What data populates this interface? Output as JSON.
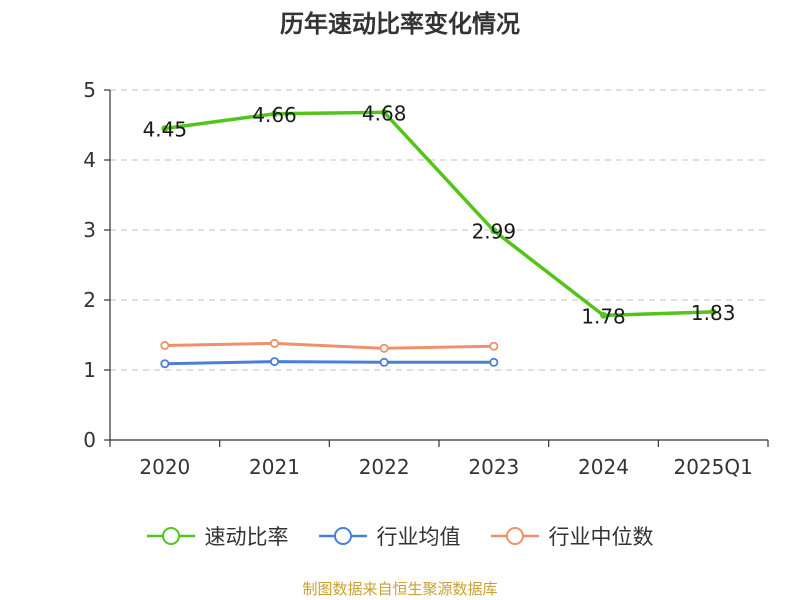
{
  "title": "历年速动比率变化情况",
  "source": "制图数据来自恒生聚源数据库",
  "colors": {
    "main": "#52c41a",
    "avg": "#4a7fd8",
    "median": "#f0906a",
    "axis": "#333333",
    "grid": "#cccccc"
  },
  "chart_data": {
    "type": "line",
    "title": "历年速动比率变化情况",
    "categories": [
      "2020",
      "2021",
      "2022",
      "2023",
      "2024",
      "2025Q1"
    ],
    "ylim": [
      0,
      5
    ],
    "yticks": [
      0,
      1,
      2,
      3,
      4,
      5
    ],
    "grid": true,
    "legend_position": "bottom",
    "series": [
      {
        "name": "速动比率",
        "color": "#52c41a",
        "values": [
          4.45,
          4.66,
          4.68,
          2.99,
          1.78,
          1.83
        ],
        "labels": [
          "4.45",
          "4.66",
          "4.68",
          "2.99",
          "1.78",
          "1.83"
        ],
        "markers": false
      },
      {
        "name": "行业均值",
        "color": "#4a7fd8",
        "values": [
          1.09,
          1.12,
          1.11,
          1.11,
          null,
          null
        ],
        "markers": true
      },
      {
        "name": "行业中位数",
        "color": "#f0906a",
        "values": [
          1.35,
          1.38,
          1.31,
          1.34,
          null,
          null
        ],
        "markers": true
      }
    ]
  }
}
